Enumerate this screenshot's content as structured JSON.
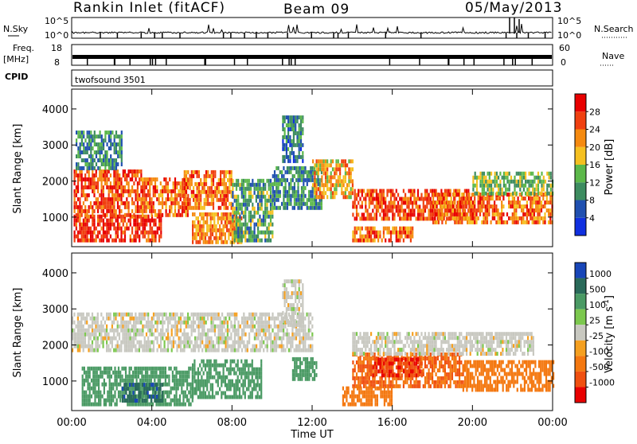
{
  "header": {
    "station": "Rankin Inlet (fitACF)",
    "beam": "Beam 09",
    "date": "05/May/2013"
  },
  "strip_panels": {
    "nsky": {
      "left_label": "N.Sky",
      "right_label": "N.Search",
      "left_ticks": [
        "10^5",
        "10^0"
      ],
      "right_ticks": [
        "10^5",
        "10^0"
      ]
    },
    "freq": {
      "left_label_1": "Freq.",
      "left_label_2": "[MHz]",
      "right_label": "Nave",
      "left_ticks": [
        "18",
        "8"
      ],
      "right_ticks": [
        "60",
        "0"
      ]
    },
    "cpid": {
      "label": "CPID",
      "program": "twofsound 3501"
    }
  },
  "colors": {
    "power_scale": [
      "#1030e0",
      "#2050b0",
      "#3d8c60",
      "#5cb84a",
      "#f5c020",
      "#f58a10",
      "#f04010",
      "#e80000"
    ],
    "velocity_scale": [
      "#1846b8",
      "#2a6a5a",
      "#4a9a64",
      "#7cc84e",
      "#c8c8c0",
      "#f5a020",
      "#f47810",
      "#f05010",
      "#e80000"
    ]
  },
  "chart_data": [
    {
      "type": "heatmap",
      "name": "power-panel",
      "ylabel": "Slant Range [km]",
      "xlabel": "",
      "x_ticks": [
        "00:00",
        "04:00",
        "08:00",
        "12:00",
        "16:00",
        "20:00",
        "00:00"
      ],
      "x_range_hours": [
        0,
        24
      ],
      "y_ticks": [
        1000,
        2000,
        3000,
        4000
      ],
      "ylim": [
        180,
        4550
      ],
      "colorbar": {
        "label": "Power [dB]",
        "ticks": [
          4,
          8,
          12,
          16,
          20,
          24,
          28
        ],
        "range": [
          0,
          32
        ]
      },
      "regions": [
        {
          "t0": 0.1,
          "t1": 4.5,
          "r0": 300,
          "r1": 1000,
          "value": 28
        },
        {
          "t0": 0.1,
          "t1": 3.5,
          "r0": 1000,
          "r1": 2300,
          "value": 26
        },
        {
          "t0": 3.5,
          "t1": 5.8,
          "r0": 1000,
          "r1": 2100,
          "value": 24
        },
        {
          "t0": 5.5,
          "t1": 8.0,
          "r0": 1200,
          "r1": 2300,
          "value": 24
        },
        {
          "t0": 6.0,
          "t1": 8.5,
          "r0": 250,
          "r1": 1100,
          "value": 22
        },
        {
          "t0": 8.0,
          "t1": 10.0,
          "r0": 300,
          "r1": 2000,
          "value": 12
        },
        {
          "t0": 10.0,
          "t1": 12.5,
          "r0": 1200,
          "r1": 2400,
          "value": 10
        },
        {
          "t0": 12.0,
          "t1": 14.0,
          "r0": 1500,
          "r1": 2600,
          "value": 20
        },
        {
          "t0": 14.0,
          "t1": 20.0,
          "r0": 900,
          "r1": 1700,
          "value": 26
        },
        {
          "t0": 14.0,
          "t1": 17.0,
          "r0": 300,
          "r1": 700,
          "value": 24
        },
        {
          "t0": 18.0,
          "t1": 24.0,
          "r0": 800,
          "r1": 1600,
          "value": 24
        },
        {
          "t0": 20.0,
          "t1": 24.0,
          "r0": 1600,
          "r1": 2200,
          "value": 14
        },
        {
          "t0": 0.2,
          "t1": 2.5,
          "r0": 2300,
          "r1": 3300,
          "value": 10
        },
        {
          "t0": 10.5,
          "t1": 11.5,
          "r0": 2500,
          "r1": 3800,
          "value": 8
        }
      ]
    },
    {
      "type": "heatmap",
      "name": "velocity-panel",
      "ylabel": "Slant Range [km]",
      "xlabel": "Time UT",
      "x_ticks": [
        "00:00",
        "04:00",
        "08:00",
        "12:00",
        "16:00",
        "20:00",
        "00:00"
      ],
      "x_range_hours": [
        0,
        24
      ],
      "y_ticks": [
        1000,
        2000,
        3000,
        4000
      ],
      "ylim": [
        180,
        4550
      ],
      "colorbar": {
        "label": "Velocity [m s^-1]",
        "ticks": [
          "1000",
          "500",
          "100",
          "25",
          "-25",
          "-100",
          "-500",
          "-1000"
        ]
      },
      "regions": [
        {
          "t0": 0.0,
          "t1": 12.0,
          "r0": 1800,
          "r1": 2800,
          "value": 0
        },
        {
          "t0": 0.5,
          "t1": 6.0,
          "r0": 300,
          "r1": 1400,
          "value": 300
        },
        {
          "t0": 2.5,
          "t1": 4.5,
          "r0": 400,
          "r1": 900,
          "value": 800
        },
        {
          "t0": 6.0,
          "t1": 9.5,
          "r0": 500,
          "r1": 1500,
          "value": 250
        },
        {
          "t0": 11.0,
          "t1": 12.2,
          "r0": 1000,
          "r1": 1600,
          "value": 200
        },
        {
          "t0": 14.0,
          "t1": 19.5,
          "r0": 800,
          "r1": 1700,
          "value": -500
        },
        {
          "t0": 15.0,
          "t1": 17.5,
          "r0": 1100,
          "r1": 1600,
          "value": -1000
        },
        {
          "t0": 13.5,
          "t1": 16.0,
          "r0": 300,
          "r1": 800,
          "value": -300
        },
        {
          "t0": 19.5,
          "t1": 24.0,
          "r0": 700,
          "r1": 1500,
          "value": -300
        },
        {
          "t0": 14.0,
          "t1": 23.0,
          "r0": 1700,
          "r1": 2300,
          "value": 0
        },
        {
          "t0": 10.5,
          "t1": 11.5,
          "r0": 2500,
          "r1": 3800,
          "value": 0
        }
      ]
    }
  ]
}
